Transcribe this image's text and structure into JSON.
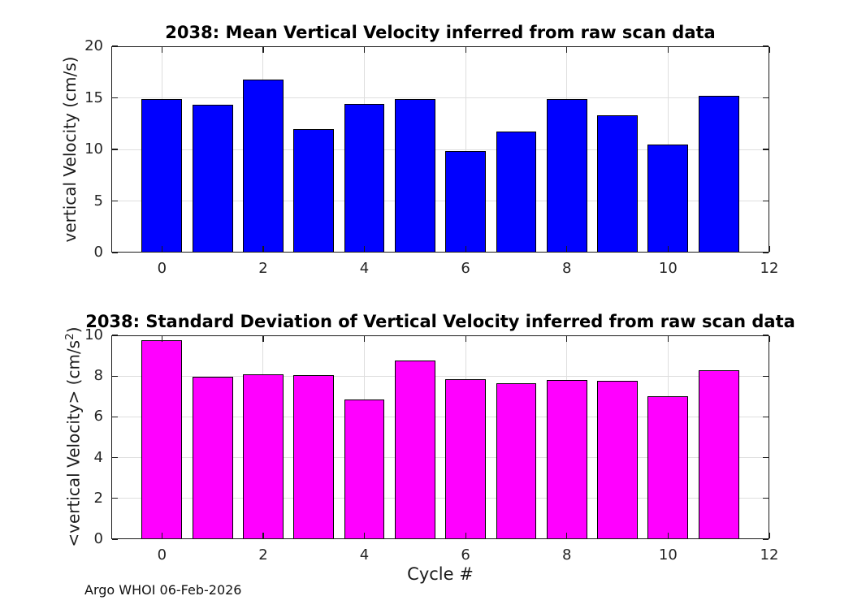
{
  "figure": {
    "footer_note": "Argo WHOI 06-Feb-2026"
  },
  "chart_data": [
    {
      "type": "bar",
      "title": "2038: Mean Vertical Velocity inferred from raw scan data",
      "xlabel": "",
      "ylabel_parts": [
        {
          "t": "vertical Velocity (cm/s)",
          "sup": false
        }
      ],
      "categories": [
        0,
        1,
        2,
        3,
        4,
        5,
        6,
        7,
        8,
        9,
        10,
        11
      ],
      "values": [
        14.85,
        14.35,
        16.8,
        11.95,
        14.4,
        14.85,
        9.85,
        11.75,
        14.9,
        13.3,
        10.45,
        15.2
      ],
      "bar_width_units": 0.8,
      "bar_color": "#0000FF",
      "bar_edge_color": "#000000",
      "xlim": [
        -1,
        12
      ],
      "ylim": [
        0,
        20
      ],
      "xticks": [
        0,
        2,
        4,
        6,
        8,
        10,
        12
      ],
      "yticks": [
        0,
        5,
        10,
        15,
        20
      ],
      "grid": true,
      "legend": null
    },
    {
      "type": "bar",
      "title": "2038: Standard Deviation of Vertical Velocity inferred from raw scan data",
      "xlabel": "Cycle #",
      "ylabel_parts": [
        {
          "t": "<vertical Velocity> (cm/s",
          "sup": false
        },
        {
          "t": "2",
          "sup": true
        },
        {
          "t": ")",
          "sup": false
        }
      ],
      "categories": [
        0,
        1,
        2,
        3,
        4,
        5,
        6,
        7,
        8,
        9,
        10,
        11
      ],
      "values": [
        9.75,
        7.95,
        8.1,
        8.05,
        6.85,
        8.75,
        7.85,
        7.65,
        7.8,
        7.75,
        7.0,
        8.3
      ],
      "bar_width_units": 0.8,
      "bar_color": "#FF00FF",
      "bar_edge_color": "#000000",
      "xlim": [
        -1,
        12
      ],
      "ylim": [
        0,
        10
      ],
      "xticks": [
        0,
        2,
        4,
        6,
        8,
        10,
        12
      ],
      "yticks": [
        0,
        2,
        4,
        6,
        8,
        10
      ],
      "grid": true,
      "legend": null
    }
  ]
}
